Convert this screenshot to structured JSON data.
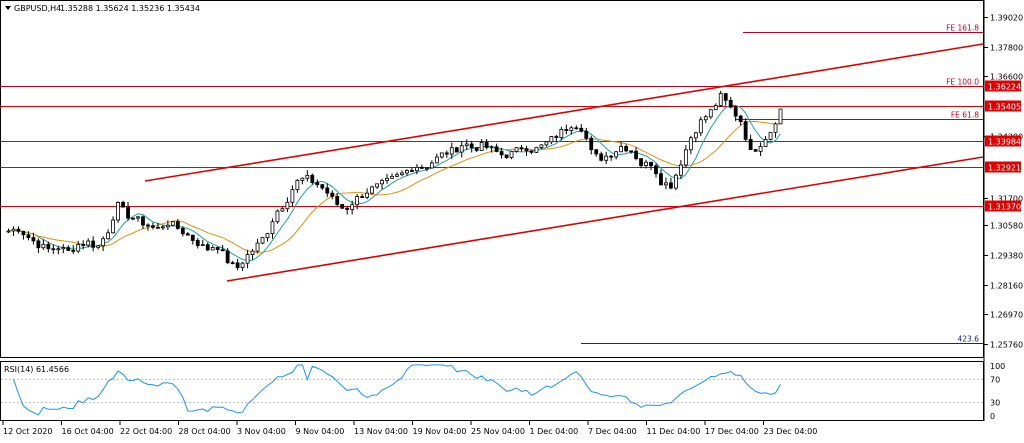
{
  "header": {
    "symbol_label": "GBPUSD,H4",
    "ohlc": "1.35288 1.35624 1.35236 1.35434"
  },
  "price_axis": {
    "ticks": [
      "1.39020",
      "1.37800",
      "1.36600",
      "1.35405",
      "1.34200",
      "1.33984",
      "1.32921",
      "1.31700",
      "1.31370",
      "1.30580",
      "1.29380",
      "1.28160",
      "1.26970",
      "1.25760"
    ]
  },
  "levels": [
    {
      "name": "fe-161-8",
      "price": 1.3838,
      "label": "FE 161.8",
      "tag": ""
    },
    {
      "name": "fe-100",
      "price": 1.3622,
      "label": "FE 100.0",
      "tag": "1.36224"
    },
    {
      "name": "r1",
      "price": 1.3623,
      "label": "",
      "tag": ""
    },
    {
      "name": "r2",
      "price": 1.35405,
      "label": "",
      "tag": "1.35405"
    },
    {
      "name": "fe-61-8",
      "price": 1.3489,
      "label": "FE 61.8",
      "tag": ""
    },
    {
      "name": "r3",
      "price": 1.33984,
      "label": "",
      "tag": "1.33984"
    },
    {
      "name": "r4",
      "price": 1.32921,
      "label": "",
      "tag": "1.32921"
    },
    {
      "name": "r5",
      "price": 1.3137,
      "label": "",
      "tag": "1.31370"
    },
    {
      "name": "fe-423-6",
      "price": 1.2583,
      "label": "423.6",
      "tag": ""
    }
  ],
  "rsi": {
    "label": "RSI(14) 61.4566",
    "ticks": [
      "70",
      "30"
    ],
    "top_label": "100",
    "bottom_label": "0",
    "last": 61.4566
  },
  "time_axis": {
    "labels": [
      "12 Oct 2020",
      "16 Oct 04:00",
      "22 Oct 04:00",
      "28 Oct 04:00",
      "3 Nov 04:00",
      "9 Nov 04:00",
      "13 Nov 04:00",
      "19 Nov 04:00",
      "25 Nov 04:00",
      "1 Dec 04:00",
      "7 Dec 04:00",
      "11 Dec 04:00",
      "17 Dec 04:00",
      "23 Dec 04:00"
    ]
  },
  "colors": {
    "bull": "#000000",
    "bear": "#000000",
    "level_line": "#e00000",
    "channel": "#e00000",
    "ma_fast": "#20a0a0",
    "ma_slow": "#e09010",
    "rsi_line": "#1e90ff",
    "tag_bg": "#e00000",
    "fe_line": "#c00020",
    "fe_423_line": "#20208c"
  },
  "chart_data": {
    "type": "line",
    "title": "GBPUSD,H4",
    "ohlc_last": [
      1.35288,
      1.35624,
      1.35236,
      1.35434
    ],
    "y_range": [
      1.2525,
      1.3965
    ],
    "series": [
      {
        "name": "GBPUSD,H4",
        "x": [
          0,
          10,
          20,
          30,
          40,
          50,
          60,
          70,
          80,
          90,
          100,
          110,
          120,
          130,
          140,
          150,
          160,
          170,
          180,
          190,
          200,
          210,
          220,
          230,
          240,
          250,
          260,
          270,
          280,
          290,
          300,
          310,
          320,
          330,
          340,
          350,
          360,
          370,
          380,
          390,
          400,
          410,
          420,
          430,
          440,
          450,
          460,
          470,
          480,
          490,
          500,
          510,
          520,
          530,
          540,
          550,
          560,
          570,
          580,
          590,
          600,
          610,
          620,
          630,
          640,
          650,
          660,
          670,
          680,
          690,
          700,
          710,
          720,
          730,
          740,
          750,
          760,
          770,
          780
        ],
        "values": [
          1.3035,
          1.3045,
          1.301,
          1.298,
          1.296,
          1.297,
          1.295,
          1.298,
          1.299,
          1.297,
          1.303,
          1.314,
          1.31,
          1.308,
          1.306,
          1.304,
          1.307,
          1.305,
          1.302,
          1.299,
          1.296,
          1.298,
          1.292,
          1.288,
          1.293,
          1.297,
          1.302,
          1.311,
          1.315,
          1.323,
          1.325,
          1.323,
          1.32,
          1.315,
          1.312,
          1.316,
          1.319,
          1.321,
          1.323,
          1.325,
          1.327,
          1.33,
          1.329,
          1.332,
          1.335,
          1.336,
          1.339,
          1.337,
          1.338,
          1.336,
          1.334,
          1.335,
          1.338,
          1.336,
          1.338,
          1.341,
          1.344,
          1.347,
          1.345,
          1.334,
          1.333,
          1.335,
          1.338,
          1.336,
          1.33,
          1.331,
          1.323,
          1.322,
          1.332,
          1.342,
          1.348,
          1.352,
          1.358,
          1.353,
          1.348,
          1.335,
          1.339,
          1.344,
          1.3525
        ]
      }
    ]
  }
}
